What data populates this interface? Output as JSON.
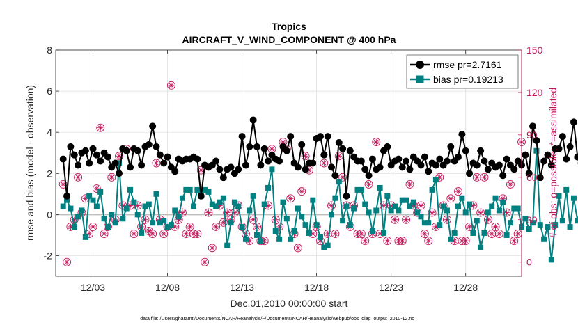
{
  "chart_data": {
    "type": "line",
    "title": "Tropics",
    "subtitle": "AIRCRAFT_V_WIND_COMPONENT @ 400 hPa",
    "xlabel": "Dec.01,2010 00:00:00 start",
    "ylabel_left": "rmse and bias (model - observation)",
    "ylabel_right": "# of obs: o=possible; *=assimilated",
    "ylim_left": [
      -3,
      8
    ],
    "ylim_right": [
      -10,
      150
    ],
    "xlim": [
      0.5,
      31.75
    ],
    "x_ticks": [
      3,
      8,
      13,
      18,
      23,
      28
    ],
    "x_tick_labels": [
      "12/03",
      "12/08",
      "12/13",
      "12/18",
      "12/23",
      "12/28"
    ],
    "y_ticks_left": [
      "8",
      "6",
      "4",
      "2",
      "0",
      "-2"
    ],
    "y_ticks_right": [
      "150",
      "120",
      "90",
      "60",
      "30",
      "0"
    ],
    "y_tick_values_left": [
      8,
      6,
      4,
      2,
      0,
      -2
    ],
    "y_tick_values_right": [
      150,
      120,
      90,
      60,
      30,
      0
    ],
    "legend_position": "top-right",
    "footnote": "data file: /Users/gharamti/Documents/NCAR/Reanalysis/~/Documents/NCAR/Reanalysis/webpub/obs_diag_output_2010-12.nc",
    "colors": {
      "rmse": "#000000",
      "bias": "#008080",
      "obs": "#c2185b"
    },
    "series": [
      {
        "name": "rmse pr=2.7161",
        "marker": "circle",
        "x_start": 1.0,
        "x_step": 0.25,
        "values": [
          2.7,
          0.9,
          3.3,
          2.9,
          2.4,
          3.0,
          3.1,
          2.5,
          3.2,
          2.9,
          2.6,
          3.0,
          2.8,
          2.3,
          2.5,
          2.0,
          3.2,
          3.1,
          2.3,
          3.2,
          3.1,
          2.4,
          3.3,
          3.4,
          4.3,
          3.3,
          2.9,
          2.5,
          2.8,
          2.3,
          2.1,
          2.7,
          2.6,
          2.7,
          2.7,
          2.8,
          2.7,
          0.9,
          2.4,
          2.3,
          2.4,
          2.6,
          2.2,
          1.8,
          2.2,
          2.3,
          2.0,
          2.2,
          3.8,
          2.4,
          3.3,
          4.6,
          3.3,
          2.4,
          3.2,
          2.6,
          2.9,
          2.7,
          2.6,
          3.3,
          3.1,
          3.8,
          2.5,
          2.3,
          3.4,
          2.2,
          2.5,
          2.5,
          3.7,
          3.8,
          2.9,
          3.8,
          2.3,
          1.9,
          3.5,
          3.2,
          0.9,
          3.1,
          2.8,
          2.6,
          2.6,
          2.2,
          1.9,
          2.7,
          2.2,
          2.3,
          3.1,
          3.3,
          2.4,
          2.6,
          2.7,
          2.3,
          2.6,
          2.2,
          2.8,
          2.6,
          2.4,
          2.8,
          2.1,
          2.5,
          2.4,
          2.7,
          2.4,
          2.6,
          3.3,
          2.6,
          2.8,
          3.9,
          3.1,
          2.0,
          2.5,
          2.4,
          3.1,
          2.6,
          2.2,
          2.5,
          2.3,
          2.4,
          1.9,
          2.7,
          2.4,
          2.2,
          2.6,
          2.4,
          2.9,
          2.0,
          4.3,
          3.6,
          1.8,
          2.6,
          2.9,
          2.4,
          3.2,
          3.2,
          3.8,
          2.7,
          3.3,
          4.5,
          2.8,
          2.5,
          2.4
        ]
      },
      {
        "name": "bias pr=0.19213",
        "marker": "square",
        "x_start": 1.0,
        "x_step": 0.25,
        "values": [
          0.4,
          0.7,
          0.3,
          -0.6,
          -0.1,
          0.2,
          -1.1,
          0.9,
          0.7,
          0.4,
          1.1,
          -0.2,
          -0.6,
          0.0,
          -0.4,
          2.5,
          -0.2,
          0.3,
          1.2,
          0.6,
          0.0,
          -0.9,
          0.4,
          0.5,
          -0.4,
          1.0,
          -0.4,
          -0.3,
          -0.6,
          -0.5,
          0.2,
          -0.1,
          0.8,
          1.2,
          1.2,
          0.4,
          1.2,
          0.9,
          1.2,
          1.1,
          0.5,
          0.4,
          0.6,
          0.8,
          -1.5,
          -0.4,
          0.6,
          0.4,
          -0.6,
          -1.2,
          0.2,
          0.9,
          -1.0,
          -1.3,
          0.5,
          1.3,
          2.2,
          -0.8,
          -1.2,
          0.6,
          -0.2,
          -1.2,
          -0.8,
          0.3,
          -0.1,
          -0.5,
          -0.9,
          0.7,
          -0.5,
          -1.1,
          -1.6,
          -1.5,
          0.0,
          0.8,
          1.6,
          -0.3,
          0.4,
          -0.5,
          0.3,
          1.2,
          1.2,
          0.5,
          0.1,
          -0.8,
          0.2,
          1.3,
          -0.9,
          0.9,
          0.2,
          0.4,
          0.2,
          0.7,
          0.7,
          0.4,
          0.6,
          0.1,
          -0.1,
          -0.4,
          -0.4,
          1.2,
          1.7,
          -0.5,
          0.4,
          0.2,
          -1.2,
          -0.9,
          0.4,
          0.8,
          0.1,
          0.5,
          -0.9,
          -0.3,
          -1.6,
          -0.9,
          0.1,
          0.4,
          0.8,
          0.2,
          0.6,
          -1.0,
          -0.4,
          0.3,
          0.3,
          -0.6,
          -0.2,
          -0.7,
          -0.4,
          3.1,
          -0.5,
          -1.2,
          -0.6,
          -2.2,
          -0.5,
          0.9,
          -0.3,
          1.2,
          -0.6,
          0.8,
          -0.3,
          0.6,
          -0.4
        ]
      },
      {
        "name": "# obs possible",
        "marker": "circle-open",
        "axis": "right",
        "x_start": 1.0,
        "x_step": 0.25,
        "values": [
          55,
          0,
          25,
          30,
          60,
          35,
          45,
          20,
          25,
          52,
          95,
          20,
          25,
          60,
          30,
          75,
          40,
          80,
          40,
          20,
          40,
          25,
          30,
          22,
          20,
          70,
          30,
          20,
          25,
          125,
          25,
          30,
          35,
          20,
          25,
          20,
          20,
          65,
          0,
          35,
          10,
          25,
          40,
          28,
          35,
          30,
          35,
          40,
          25,
          20,
          15,
          30,
          25,
          15,
          15,
          40,
          80,
          30,
          25,
          85,
          80,
          45,
          20,
          10,
          50,
          75,
          65,
          20,
          25,
          15,
          70,
          20,
          40,
          20,
          75,
          60,
          40,
          25,
          40,
          20,
          20,
          15,
          55,
          20,
          85,
          20,
          40,
          15,
          40,
          30,
          15,
          15,
          30,
          55,
          40,
          35,
          40,
          20,
          15,
          35,
          25,
          60,
          40,
          30,
          45,
          15,
          50,
          15,
          15,
          25,
          40,
          60,
          35,
          60,
          30,
          20,
          25,
          20,
          45,
          35,
          55,
          15,
          20,
          85,
          25,
          45,
          45,
          25,
          20,
          75,
          55,
          30,
          20,
          30,
          50,
          20,
          0
        ]
      },
      {
        "name": "# obs assimilated",
        "marker": "star",
        "axis": "right",
        "x_start": 1.0,
        "x_step": 0.25,
        "values": [
          55,
          0,
          25,
          30,
          60,
          35,
          45,
          20,
          25,
          52,
          95,
          20,
          25,
          60,
          30,
          75,
          40,
          80,
          40,
          20,
          40,
          25,
          30,
          22,
          20,
          70,
          30,
          20,
          25,
          125,
          25,
          30,
          35,
          20,
          25,
          20,
          20,
          65,
          0,
          35,
          10,
          25,
          40,
          28,
          35,
          30,
          35,
          40,
          25,
          20,
          15,
          30,
          25,
          15,
          15,
          40,
          80,
          30,
          25,
          85,
          80,
          45,
          20,
          10,
          50,
          75,
          65,
          20,
          25,
          15,
          70,
          20,
          40,
          20,
          75,
          60,
          40,
          25,
          40,
          20,
          20,
          15,
          55,
          20,
          85,
          20,
          40,
          15,
          40,
          30,
          15,
          15,
          30,
          55,
          40,
          35,
          40,
          20,
          15,
          35,
          25,
          60,
          40,
          30,
          45,
          15,
          50,
          15,
          15,
          25,
          40,
          60,
          35,
          60,
          30,
          20,
          25,
          20,
          45,
          35,
          55,
          15,
          20,
          85,
          25,
          45,
          45,
          25,
          20,
          75,
          55,
          30,
          20,
          30,
          50,
          20,
          0
        ]
      }
    ]
  }
}
